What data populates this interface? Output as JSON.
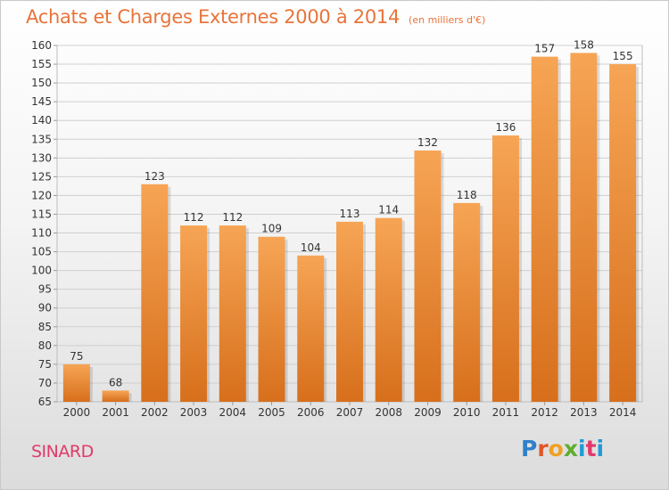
{
  "header": {
    "title": "Achats et Charges Externes 2000 à 2014",
    "subtitle": "(en milliers d'€)"
  },
  "footer": {
    "city": "SINARD",
    "logo_text": "Proxiti"
  },
  "colors": {
    "title": "#e8743a",
    "bar_top": "#f6a555",
    "bar_bottom": "#d76f1c",
    "city": "#e03a6a"
  },
  "chart_data": {
    "type": "bar",
    "title": "Achats et Charges Externes 2000 à 2014",
    "subtitle": "(en milliers d'€)",
    "xlabel": "",
    "ylabel": "",
    "categories": [
      "2000",
      "2001",
      "2002",
      "2003",
      "2004",
      "2005",
      "2006",
      "2007",
      "2008",
      "2009",
      "2010",
      "2011",
      "2012",
      "2013",
      "2014"
    ],
    "values": [
      75,
      68,
      123,
      112,
      112,
      109,
      104,
      113,
      114,
      132,
      118,
      136,
      157,
      158,
      155
    ],
    "ylim": [
      65,
      160
    ],
    "yticks": [
      65,
      70,
      75,
      80,
      85,
      90,
      95,
      100,
      105,
      110,
      115,
      120,
      125,
      130,
      135,
      140,
      145,
      150,
      155,
      160
    ],
    "grid": true,
    "data_labels": true
  }
}
